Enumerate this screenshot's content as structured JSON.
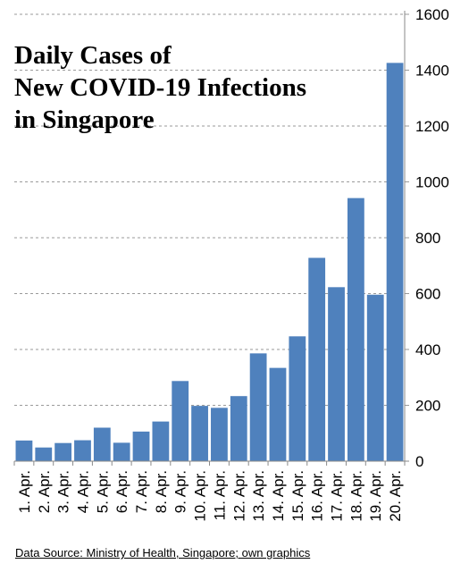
{
  "chart_data": {
    "type": "bar",
    "title_lines": [
      "Daily Cases of",
      "New COVID-19 Infections",
      "in Singapore"
    ],
    "categories": [
      "1. Apr.",
      "2. Apr.",
      "3. Apr.",
      "4. Apr.",
      "5. Apr.",
      "6. Apr.",
      "7. Apr.",
      "8. Apr.",
      "9. Apr.",
      "10. Apr.",
      "11. Apr.",
      "12. Apr.",
      "13. Apr.",
      "14. Apr.",
      "15. Apr.",
      "16. Apr.",
      "17. Apr.",
      "18. Apr.",
      "19. Apr.",
      "20. Apr."
    ],
    "values": [
      74,
      49,
      65,
      75,
      120,
      66,
      106,
      142,
      287,
      198,
      191,
      233,
      386,
      334,
      447,
      728,
      623,
      942,
      596,
      1426
    ],
    "y_ticks": [
      "0",
      "200",
      "400",
      "600",
      "800",
      "1000",
      "1200",
      "1400",
      "1600"
    ],
    "ylim": [
      0,
      1600
    ],
    "y_axis_side": "right",
    "grid": "horizontal dashed",
    "bar_color": "#4f81bd",
    "grid_color": "#9a9a9a"
  },
  "source_note": "Data Source: Ministry of Health, Singapore; own graphics"
}
